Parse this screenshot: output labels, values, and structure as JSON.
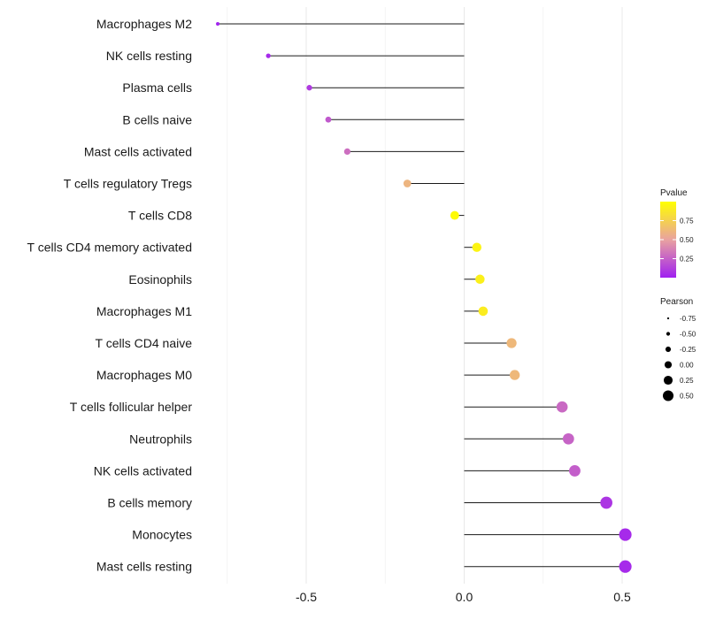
{
  "chart_data": {
    "type": "lollipop",
    "x_ticks": [
      "-0.5",
      "0.0",
      "0.5"
    ],
    "x_tick_values": [
      -0.5,
      0.0,
      0.5
    ],
    "xlim": [
      -0.78,
      0.53
    ],
    "categories": [
      "Macrophages M2",
      "NK cells resting",
      "Plasma cells",
      "B cells naive",
      "Mast cells activated",
      "T cells regulatory  Tregs ",
      "T cells CD8",
      "T cells CD4 memory activated",
      "Eosinophils",
      "Macrophages M1",
      "T cells CD4 naive",
      "Macrophages M0",
      "T cells follicular helper",
      "Neutrophils",
      "NK cells activated",
      "B cells memory",
      "Monocytes",
      "Mast cells resting"
    ],
    "pearson": [
      -0.78,
      -0.62,
      -0.49,
      -0.43,
      -0.37,
      -0.18,
      -0.03,
      0.04,
      0.05,
      0.06,
      0.15,
      0.16,
      0.31,
      0.33,
      0.35,
      0.45,
      0.51,
      0.51
    ],
    "pvalue": [
      0.01,
      0.04,
      0.1,
      0.22,
      0.3,
      0.6,
      0.98,
      0.94,
      0.92,
      0.9,
      0.62,
      0.62,
      0.28,
      0.26,
      0.24,
      0.08,
      0.04,
      0.04
    ],
    "legend_pvalue": {
      "title": "Pvalue",
      "ticks": [
        "0.75",
        "0.50",
        "0.25"
      ],
      "tick_values": [
        0.75,
        0.5,
        0.25
      ],
      "range": [
        0.0,
        1.0
      ],
      "colors": [
        "#a020f0",
        "#e9a2a0",
        "#ffff00"
      ]
    },
    "legend_pearson": {
      "title": "Pearson",
      "labels": [
        "-0.75",
        "-0.50",
        "-0.25",
        "0.00",
        "0.25",
        "0.50"
      ],
      "values": [
        -0.75,
        -0.5,
        -0.25,
        0.0,
        0.25,
        0.5
      ]
    }
  }
}
